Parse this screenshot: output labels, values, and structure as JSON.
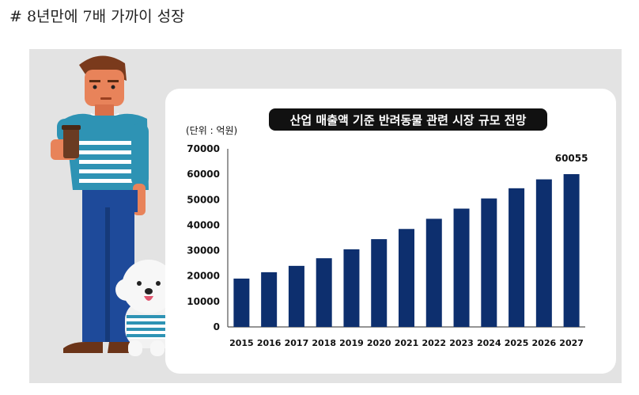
{
  "heading": "# 8년만에 7배 가까이 성장",
  "colors": {
    "bar": "#0d2f6e",
    "panel": "#e3e3e3",
    "shirt_stripe": "#2e93b4",
    "pants": "#1e4a9a"
  },
  "icons": {
    "person": "man-holding-coffee-illustration",
    "dog": "white-poodle-illustration"
  },
  "chart_data": {
    "type": "bar",
    "title": "산업 매출액 기준 반려동물 관련 시장 규모 전망",
    "unit": "(단위 : 억원)",
    "categories": [
      "2015",
      "2016",
      "2017",
      "2018",
      "2019",
      "2020",
      "2021",
      "2022",
      "2023",
      "2024",
      "2025",
      "2026",
      "2027"
    ],
    "values": [
      19000,
      21500,
      24000,
      27000,
      30500,
      34500,
      38500,
      42500,
      46500,
      50500,
      54500,
      58000,
      60055
    ],
    "yticks": [
      0,
      10000,
      20000,
      30000,
      40000,
      50000,
      60000,
      70000
    ],
    "ylim": [
      0,
      70000
    ],
    "value_labels": [
      {
        "index": 12,
        "text": "60055"
      }
    ],
    "grid": false,
    "legend": "none"
  }
}
